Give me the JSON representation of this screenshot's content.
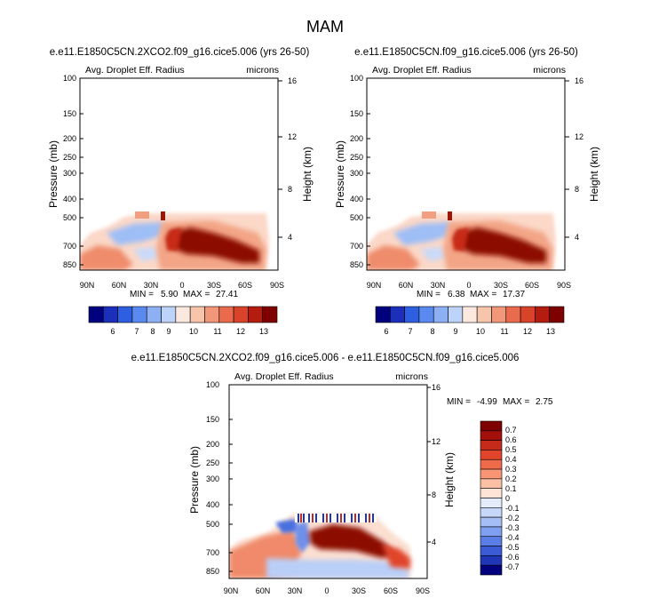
{
  "figure_title": "MAM",
  "colors": {
    "label_bar": [
      "#00007f",
      "#1c2fba",
      "#2d5fe0",
      "#5a8af0",
      "#8db0f5",
      "#bdd3fa",
      "#fbe9e0",
      "#f7c5ac",
      "#f2987a",
      "#ea6a4d",
      "#d8432a",
      "#b51c10",
      "#7f0000"
    ],
    "diff_bar": [
      "#7f0000",
      "#a30f0b",
      "#c62a1a",
      "#e0452c",
      "#ef6a4a",
      "#f79575",
      "#fbbfa4",
      "#fde4d6",
      "#e4ecfc",
      "#c6d7fa",
      "#a5bff6",
      "#7f9ff0",
      "#5a7ee6",
      "#3a5ad6",
      "#1f36b8",
      "#00007f"
    ]
  },
  "chart_data": [
    {
      "id": "panel_left",
      "type": "heatmap",
      "title": "e.e11.E1850C5CN.2XCO2.f09_g16.cice5.006 (yrs 26-50)",
      "subtitle_left": "Avg. Droplet Eff. Radius",
      "subtitle_right": "microns",
      "ylabel": "Pressure (mb)",
      "ylabel_right": "Height (km)",
      "x_ticks": [
        "90N",
        "60N",
        "30N",
        "0",
        "30S",
        "60S",
        "90S"
      ],
      "y_ticks": [
        "100",
        "150",
        "200",
        "250",
        "300",
        "400",
        "500",
        "700",
        "850"
      ],
      "y2_ticks": [
        "16",
        "12",
        "8",
        "4"
      ],
      "min_label": "MIN =",
      "min_value": "5.90",
      "max_label": "MAX =",
      "max_value": "27.41",
      "colorbar_labels": [
        "6",
        "7",
        "8",
        "9",
        "10",
        "11",
        "12",
        "13"
      ]
    },
    {
      "id": "panel_right",
      "type": "heatmap",
      "title": "e.e11.E1850C5CN.f09_g16.cice5.006 (yrs 26-50)",
      "subtitle_left": "Avg. Droplet Eff. Radius",
      "subtitle_right": "microns",
      "ylabel": "Pressure (mb)",
      "ylabel_right": "Height (km)",
      "x_ticks": [
        "90N",
        "60N",
        "30N",
        "0",
        "30S",
        "60S",
        "90S"
      ],
      "y_ticks": [
        "100",
        "150",
        "200",
        "250",
        "300",
        "400",
        "500",
        "700",
        "850"
      ],
      "y2_ticks": [
        "16",
        "12",
        "8",
        "4"
      ],
      "min_label": "MIN =",
      "min_value": "6.38",
      "max_label": "MAX =",
      "max_value": "17.37",
      "colorbar_labels": [
        "6",
        "7",
        "8",
        "9",
        "10",
        "11",
        "12",
        "13"
      ]
    },
    {
      "id": "panel_diff",
      "type": "heatmap",
      "title": "e.e11.E1850C5CN.2XCO2.f09_g16.cice5.006 - e.e11.E1850C5CN.f09_g16.cice5.006",
      "subtitle_left": "Avg. Droplet Eff. Radius",
      "subtitle_right": "microns",
      "ylabel": "Pressure (mb)",
      "ylabel_right": "Height (km)",
      "x_ticks": [
        "90N",
        "60N",
        "30N",
        "0",
        "30S",
        "60S",
        "90S"
      ],
      "y_ticks": [
        "100",
        "150",
        "200",
        "250",
        "300",
        "400",
        "500",
        "700",
        "850"
      ],
      "y2_ticks": [
        "16",
        "12",
        "8",
        "4"
      ],
      "min_label": "MIN =",
      "min_value": "-4.99",
      "max_label": "MAX =",
      "max_value": "2.75",
      "colorbar_labels": [
        "0.7",
        "0.6",
        "0.5",
        "0.4",
        "0.3",
        "0.2",
        "0.1",
        "0",
        "-0.1",
        "-0.2",
        "-0.3",
        "-0.4",
        "-0.5",
        "-0.6",
        "-0.7"
      ]
    }
  ]
}
